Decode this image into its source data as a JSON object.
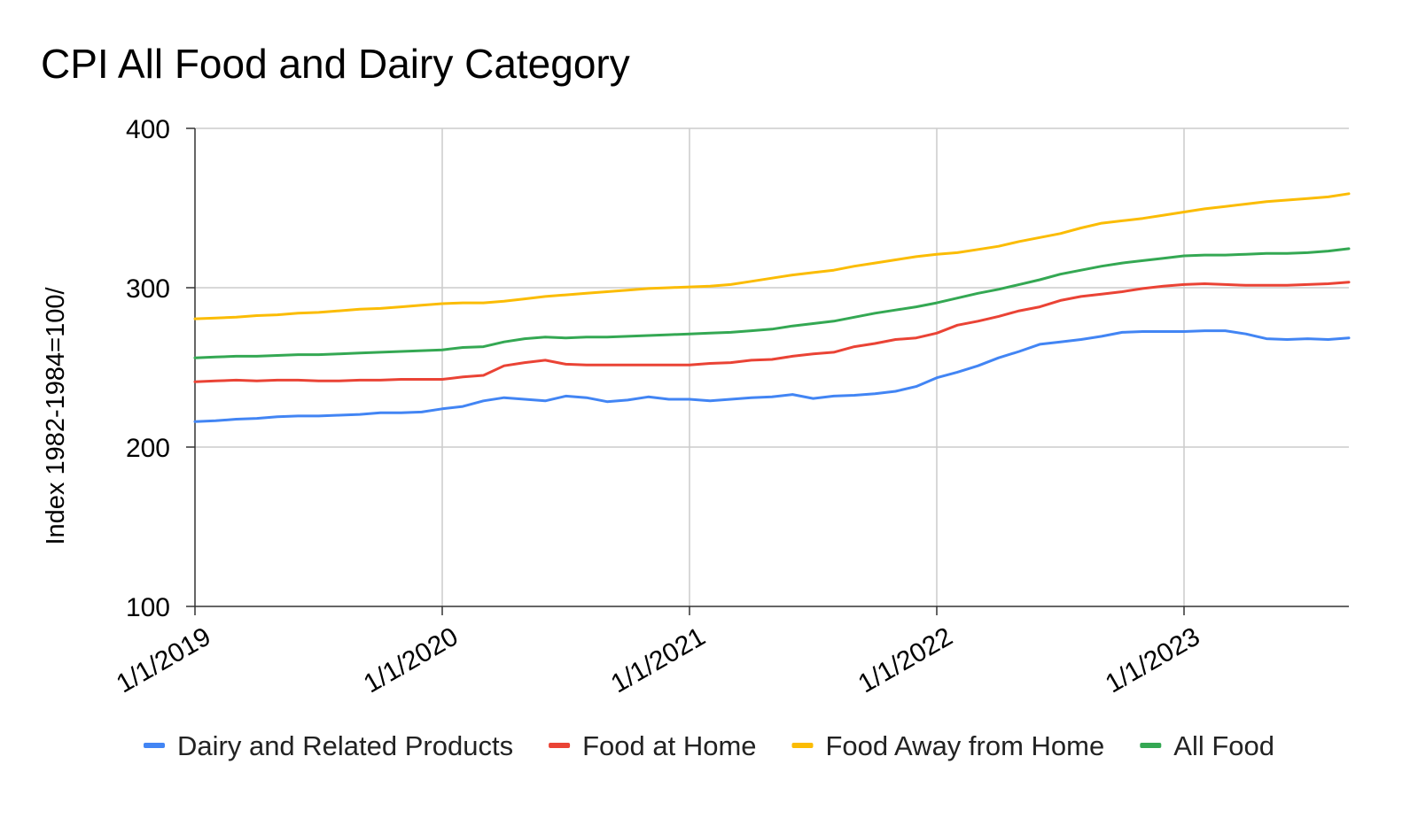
{
  "chart_data": {
    "type": "line",
    "title": "CPI All Food and Dairy Category",
    "xlabel": "",
    "ylabel": "Index 1982-1984=100/",
    "ylim": [
      100,
      400
    ],
    "yticks": [
      100,
      200,
      300,
      400
    ],
    "xticks": [
      "1/1/2019",
      "1/1/2020",
      "1/1/2021",
      "1/1/2022",
      "1/1/2023"
    ],
    "x": [
      "2019-01",
      "2019-02",
      "2019-03",
      "2019-04",
      "2019-05",
      "2019-06",
      "2019-07",
      "2019-08",
      "2019-09",
      "2019-10",
      "2019-11",
      "2019-12",
      "2020-01",
      "2020-02",
      "2020-03",
      "2020-04",
      "2020-05",
      "2020-06",
      "2020-07",
      "2020-08",
      "2020-09",
      "2020-10",
      "2020-11",
      "2020-12",
      "2021-01",
      "2021-02",
      "2021-03",
      "2021-04",
      "2021-05",
      "2021-06",
      "2021-07",
      "2021-08",
      "2021-09",
      "2021-10",
      "2021-11",
      "2021-12",
      "2022-01",
      "2022-02",
      "2022-03",
      "2022-04",
      "2022-05",
      "2022-06",
      "2022-07",
      "2022-08",
      "2022-09",
      "2022-10",
      "2022-11",
      "2022-12",
      "2023-01",
      "2023-02",
      "2023-03",
      "2023-04",
      "2023-05",
      "2023-06",
      "2023-07",
      "2023-08",
      "2023-09"
    ],
    "grid": true,
    "legend_position": "bottom",
    "series": [
      {
        "name": "Dairy and Related Products",
        "color": "#4285f4",
        "values": [
          216,
          216.5,
          217.5,
          218,
          219,
          219.5,
          219.5,
          220,
          220.5,
          221.5,
          221.5,
          222,
          224,
          225.5,
          229,
          231,
          230,
          229,
          232,
          231,
          228.5,
          229.5,
          231.5,
          230,
          230,
          229,
          230,
          231,
          231.5,
          233,
          230.5,
          232,
          232.5,
          233.5,
          235,
          238,
          243.5,
          247,
          251,
          256,
          260,
          264.5,
          266,
          267.5,
          269.5,
          272,
          272.5,
          272.5,
          272.5,
          273,
          273,
          271,
          268,
          267.5,
          268,
          267.5,
          268.5
        ]
      },
      {
        "name": "Food at Home",
        "color": "#ea4335",
        "values": [
          241,
          241.5,
          242,
          241.5,
          242,
          242,
          241.5,
          241.5,
          242,
          242,
          242.5,
          242.5,
          242.5,
          244,
          245,
          251,
          253,
          254.5,
          252,
          251.5,
          251.5,
          251.5,
          251.5,
          251.5,
          251.5,
          252.5,
          253,
          254.5,
          255,
          257,
          258.5,
          259.5,
          263,
          265,
          267.5,
          268.5,
          271.5,
          276.5,
          279,
          282,
          285.5,
          288,
          292,
          294.5,
          296,
          297.5,
          299.5,
          301,
          302,
          302.5,
          302,
          301.5,
          301.5,
          301.5,
          302,
          302.5,
          303.5
        ]
      },
      {
        "name": "Food Away from Home",
        "color": "#fbbc04",
        "values": [
          280.5,
          281,
          281.5,
          282.5,
          283,
          284,
          284.5,
          285.5,
          286.5,
          287,
          288,
          289,
          290,
          290.5,
          290.5,
          291.5,
          293,
          294.5,
          295.5,
          296.5,
          297.5,
          298.5,
          299.5,
          300,
          300.5,
          301,
          302,
          304,
          306,
          308,
          309.5,
          311,
          313.5,
          315.5,
          317.5,
          319.5,
          321,
          322,
          324,
          326,
          329,
          331.5,
          334,
          337.5,
          340.5,
          342,
          343.5,
          345.5,
          347.5,
          349.5,
          351,
          352.5,
          354,
          355,
          356,
          357,
          359
        ]
      },
      {
        "name": "All Food",
        "color": "#34a853",
        "values": [
          256,
          256.5,
          257,
          257,
          257.5,
          258,
          258,
          258.5,
          259,
          259.5,
          260,
          260.5,
          261,
          262.5,
          263,
          266,
          268,
          269,
          268.5,
          269,
          269,
          269.5,
          270,
          270.5,
          271,
          271.5,
          272,
          273,
          274,
          276,
          277.5,
          279,
          281.5,
          284,
          286,
          288,
          290.5,
          293.5,
          296.5,
          299,
          302,
          305,
          308.5,
          311,
          313.5,
          315.5,
          317,
          318.5,
          320,
          320.5,
          320.5,
          321,
          321.5,
          321.5,
          322,
          323,
          324.5
        ]
      }
    ]
  }
}
